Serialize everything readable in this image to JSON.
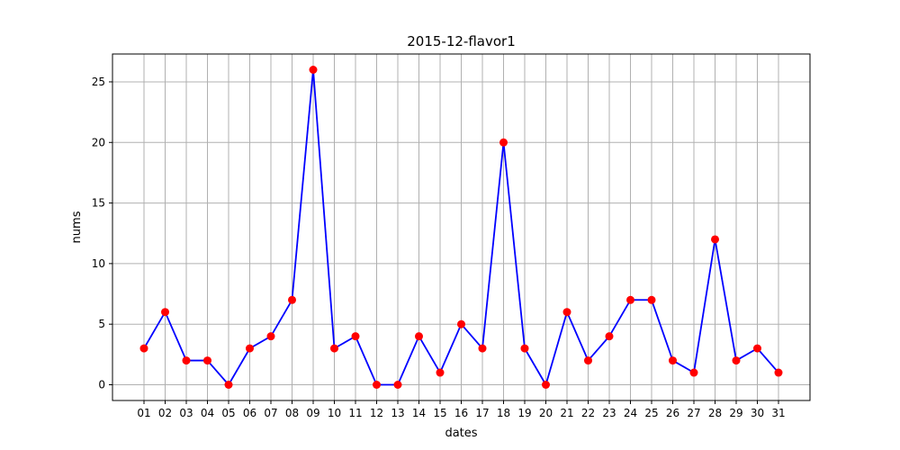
{
  "chart_data": {
    "type": "line",
    "title": "2015-12-flavor1",
    "xlabel": "dates",
    "ylabel": "nums",
    "categories": [
      "01",
      "02",
      "03",
      "04",
      "05",
      "06",
      "07",
      "08",
      "09",
      "10",
      "11",
      "12",
      "13",
      "14",
      "15",
      "16",
      "17",
      "18",
      "19",
      "20",
      "21",
      "22",
      "23",
      "24",
      "25",
      "26",
      "27",
      "28",
      "29",
      "30",
      "31"
    ],
    "series": [
      {
        "values": [
          3,
          6,
          2,
          2,
          0,
          3,
          4,
          7,
          26,
          3,
          4,
          0,
          0,
          4,
          1,
          5,
          3,
          20,
          3,
          0,
          6,
          2,
          4,
          7,
          7,
          2,
          1,
          12,
          2,
          3,
          1
        ],
        "line_color": "#0000ff",
        "marker_color": "#ff0000"
      }
    ],
    "ylim": [
      -1.3,
      27.3
    ],
    "yticks": [
      0,
      5,
      10,
      15,
      20,
      25
    ],
    "grid": true
  }
}
